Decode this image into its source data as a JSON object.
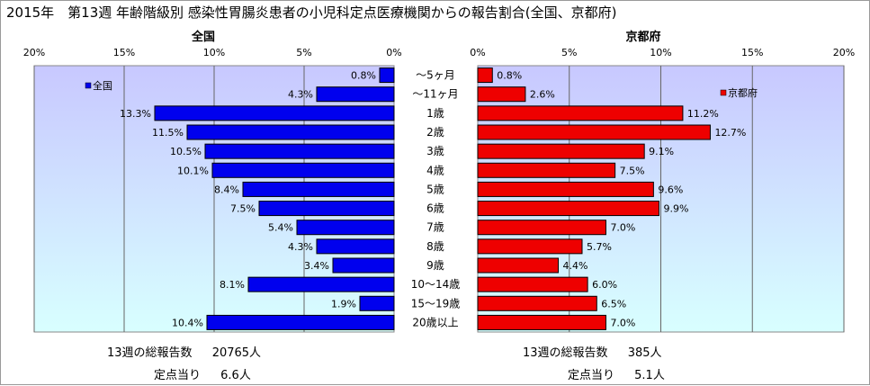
{
  "chart_data": {
    "type": "bar",
    "title": "2015年　第13週 年齢階級別 感染性胃腸炎患者の小児科定点医療機関からの報告割合(全国、京都府)",
    "categories": [
      "～5ヶ月",
      "～11ヶ月",
      "1歳",
      "2歳",
      "3歳",
      "4歳",
      "5歳",
      "6歳",
      "7歳",
      "8歳",
      "9歳",
      "10～14歳",
      "15～19歳",
      "20歳以上"
    ],
    "xlim": [
      0,
      20
    ],
    "x_ticks": [
      "0%",
      "5%",
      "10%",
      "15%",
      "20%"
    ],
    "grid": true,
    "panels": [
      {
        "heading": "全国",
        "legend_label": "全国",
        "legend_position": "top-left",
        "direction": "leftward",
        "color": "#0000ee",
        "values": [
          0.8,
          4.3,
          13.3,
          11.5,
          10.5,
          10.1,
          8.4,
          7.5,
          5.4,
          4.3,
          3.4,
          8.1,
          1.9,
          10.4
        ],
        "labels": [
          "0.8%",
          "4.3%",
          "13.3%",
          "11.5%",
          "10.5%",
          "10.1%",
          "8.4%",
          "7.5%",
          "5.4%",
          "4.3%",
          "3.4%",
          "8.1%",
          "1.9%",
          "10.4%"
        ]
      },
      {
        "heading": "京都府",
        "legend_label": "京都府",
        "legend_position": "top-right",
        "direction": "rightward",
        "color": "#ee0000",
        "values": [
          0.8,
          2.6,
          11.2,
          12.7,
          9.1,
          7.5,
          9.6,
          9.9,
          7.0,
          5.7,
          4.4,
          6.0,
          6.5,
          7.0
        ],
        "labels": [
          "0.8%",
          "2.6%",
          "11.2%",
          "12.7%",
          "9.1%",
          "7.5%",
          "9.6%",
          "9.9%",
          "7.0%",
          "5.7%",
          "4.4%",
          "6.0%",
          "6.5%",
          "7.0%"
        ]
      }
    ]
  },
  "stats": {
    "national": {
      "total_label": "13週の総報告数",
      "total_value": "20765人",
      "per_site_label": "定点当り",
      "per_site_value": "6.6人"
    },
    "kyoto": {
      "total_label": "13週の総報告数",
      "total_value": "385人",
      "per_site_label": "定点当り",
      "per_site_value": "5.1人"
    }
  },
  "colors": {
    "plot_top": "#c8c8ff",
    "plot_bottom": "#d8ffff"
  }
}
